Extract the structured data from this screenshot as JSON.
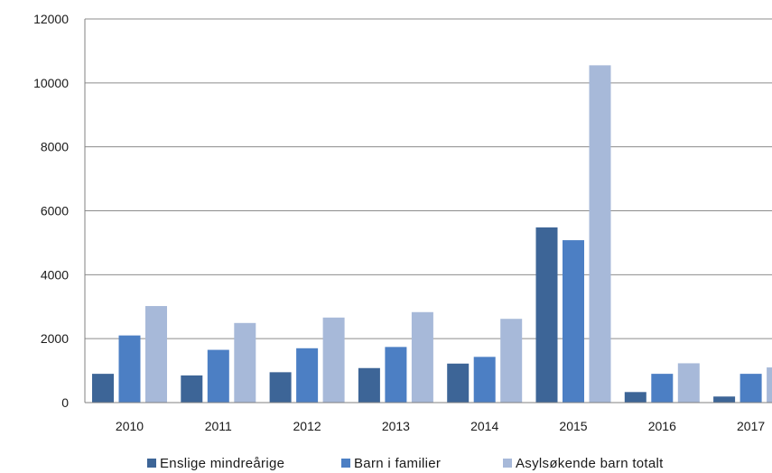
{
  "chart_data": {
    "type": "bar",
    "categories": [
      "2010",
      "2011",
      "2012",
      "2013",
      "2014",
      "2015",
      "2016",
      "2017"
    ],
    "series": [
      {
        "name": "Enslige mindreårige",
        "color": "#3d6597",
        "values": [
          900,
          850,
          950,
          1080,
          1220,
          5480,
          330,
          190
        ]
      },
      {
        "name": "Barn i familier",
        "color": "#4c7fc4",
        "values": [
          2100,
          1650,
          1700,
          1740,
          1430,
          5080,
          900,
          900
        ]
      },
      {
        "name": "Asylsøkende barn totalt",
        "color": "#a7b9d9",
        "values": [
          3020,
          2490,
          2660,
          2830,
          2620,
          10550,
          1230,
          1100
        ]
      }
    ],
    "y_ticks": [
      "0",
      "2000",
      "4000",
      "6000",
      "8000",
      "10000",
      "12000"
    ],
    "ylim": [
      0,
      12000
    ],
    "grid": true,
    "legend_position": "bottom",
    "title": "",
    "xlabel": "",
    "ylabel": ""
  }
}
